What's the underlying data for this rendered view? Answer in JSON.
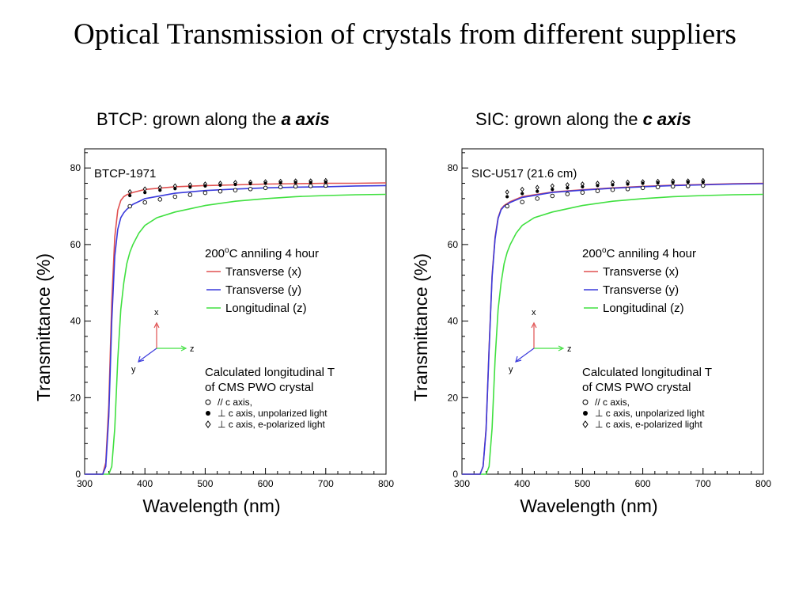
{
  "slide": {
    "title": "Optical Transmission of crystals from different suppliers"
  },
  "chart_data": [
    {
      "type": "line",
      "heading": {
        "prefix": "BTCP: grown along the ",
        "emphasis": "a axis"
      },
      "sample_label": "BTCP-1971",
      "xlabel": "Wavelength (nm)",
      "ylabel": "Transmittance (%)",
      "xlim": [
        300,
        800
      ],
      "ylim": [
        0,
        85
      ],
      "xticks": [
        "300",
        "400",
        "500",
        "600",
        "700",
        "800"
      ],
      "yticks": [
        "0",
        "20",
        "40",
        "60",
        "80"
      ],
      "legend": {
        "header_pre": "200",
        "header_sup": "o",
        "header_post": "C anniling 4 hour",
        "entries": [
          "Transverse (x)",
          "Transverse (y)",
          "Longitudinal (z)"
        ]
      },
      "axes_glyph": {
        "x": "x",
        "y": "y",
        "z": "z"
      },
      "calc_legend": {
        "title_line1": "Calculated longitudinal T",
        "title_line2": "of CMS PWO crystal",
        "entries": [
          "// c axis,",
          "⊥ c axis, unpolarized light",
          "⊥ c axis, e-polarized light"
        ]
      },
      "series": [
        {
          "name": "Transverse (x)",
          "color": "#e05050",
          "x": [
            300,
            330,
            335,
            340,
            345,
            350,
            355,
            360,
            365,
            370,
            380,
            400,
            450,
            500,
            550,
            600,
            650,
            700,
            750,
            800
          ],
          "y": [
            0,
            0,
            3,
            18,
            45,
            62,
            69,
            71.5,
            72.5,
            73,
            73.6,
            74.4,
            75.1,
            75.4,
            75.6,
            75.8,
            75.9,
            76,
            76,
            76.1
          ]
        },
        {
          "name": "Transverse (y)",
          "color": "#3a3adc",
          "x": [
            300,
            330,
            335,
            340,
            345,
            350,
            355,
            360,
            365,
            370,
            380,
            400,
            450,
            500,
            550,
            600,
            650,
            700,
            750,
            800
          ],
          "y": [
            0,
            0,
            2,
            15,
            40,
            57,
            64,
            67,
            68.3,
            69.2,
            70.5,
            72,
            73.4,
            74.1,
            74.5,
            74.8,
            75,
            75.1,
            75.3,
            75.4
          ]
        },
        {
          "name": "Longitudinal (z)",
          "color": "#40e040",
          "x": [
            300,
            340,
            345,
            350,
            355,
            360,
            365,
            370,
            375,
            380,
            390,
            400,
            420,
            450,
            500,
            550,
            600,
            650,
            700,
            750,
            800
          ],
          "y": [
            0,
            0,
            2,
            12,
            30,
            43,
            50,
            55,
            58,
            60,
            63,
            65,
            67,
            68.5,
            70.2,
            71.3,
            72,
            72.5,
            72.8,
            73,
            73.1
          ]
        }
      ],
      "markers": {
        "x": [
          375,
          400,
          425,
          450,
          475,
          500,
          525,
          550,
          575,
          600,
          625,
          650,
          675,
          700
        ],
        "c_axis": [
          70,
          71,
          71.8,
          72.5,
          73,
          73.5,
          73.9,
          74.2,
          74.5,
          74.8,
          75,
          75.2,
          75.3,
          75.4
        ],
        "perp_unpolarized": [
          72.8,
          73.6,
          74.2,
          74.6,
          75,
          75.3,
          75.5,
          75.7,
          75.9,
          76,
          76.1,
          76.2,
          76.2,
          76.3
        ],
        "perp_epolarized": [
          73.8,
          74.5,
          74.9,
          75.3,
          75.6,
          75.8,
          76,
          76.2,
          76.3,
          76.4,
          76.5,
          76.6,
          76.6,
          76.7
        ]
      }
    },
    {
      "type": "line",
      "heading": {
        "prefix": "SIC: grown along the ",
        "emphasis": "c axis"
      },
      "sample_label": "SIC-U517 (21.6 cm)",
      "xlabel": "Wavelength (nm)",
      "ylabel": "Transmittance (%)",
      "xlim": [
        300,
        800
      ],
      "ylim": [
        0,
        85
      ],
      "xticks": [
        "300",
        "400",
        "500",
        "600",
        "700",
        "800"
      ],
      "yticks": [
        "0",
        "20",
        "40",
        "60",
        "80"
      ],
      "legend": {
        "header_pre": "200",
        "header_sup": "o",
        "header_post": "C anniling 4 hour",
        "entries": [
          "Transverse (x)",
          "Transverse (y)",
          "Longitudinal (z)"
        ]
      },
      "axes_glyph": {
        "x": "x",
        "y": "y",
        "z": "z"
      },
      "calc_legend": {
        "title_line1": "Calculated longitudinal T",
        "title_line2": "of CMS PWO crystal",
        "entries": [
          "// c axis,",
          "⊥ c axis, unpolarized light",
          "⊥ c axis, e-polarized light"
        ]
      },
      "series": [
        {
          "name": "Transverse (x)",
          "color": "#e05050",
          "x": [
            300,
            330,
            335,
            340,
            345,
            350,
            355,
            360,
            365,
            370,
            380,
            400,
            450,
            500,
            550,
            600,
            650,
            700,
            750,
            800
          ],
          "y": [
            0,
            0,
            2,
            12,
            33,
            52,
            62,
            67,
            69.3,
            70.2,
            71.2,
            72.5,
            73.7,
            74.3,
            74.8,
            75.2,
            75.5,
            75.7,
            75.9,
            76
          ]
        },
        {
          "name": "Transverse (y)",
          "color": "#3a3adc",
          "x": [
            300,
            330,
            335,
            340,
            345,
            350,
            355,
            360,
            365,
            370,
            380,
            400,
            450,
            500,
            550,
            600,
            650,
            700,
            750,
            800
          ],
          "y": [
            0,
            0,
            2,
            11.5,
            32.5,
            51.5,
            61.5,
            66.8,
            69.1,
            70,
            71,
            72.3,
            73.6,
            74.2,
            74.7,
            75.1,
            75.4,
            75.6,
            75.8,
            75.9
          ]
        },
        {
          "name": "Longitudinal (z)",
          "color": "#40e040",
          "x": [
            300,
            340,
            345,
            350,
            355,
            360,
            365,
            370,
            375,
            380,
            390,
            400,
            420,
            450,
            500,
            550,
            600,
            650,
            700,
            750,
            800
          ],
          "y": [
            0,
            0,
            2,
            12,
            30,
            43,
            50,
            55,
            58,
            60,
            63,
            65,
            67,
            68.5,
            70.2,
            71.3,
            72,
            72.5,
            72.8,
            73,
            73.1
          ]
        }
      ],
      "markers": {
        "x": [
          375,
          400,
          425,
          450,
          475,
          500,
          525,
          550,
          575,
          600,
          625,
          650,
          675,
          700
        ],
        "c_axis": [
          70,
          71.1,
          72,
          72.7,
          73.2,
          73.6,
          74,
          74.3,
          74.5,
          74.8,
          75,
          75.2,
          75.3,
          75.4
        ],
        "perp_unpolarized": [
          72.5,
          73.3,
          73.9,
          74.4,
          74.8,
          75.1,
          75.4,
          75.6,
          75.8,
          76,
          76.1,
          76.2,
          76.3,
          76.3
        ],
        "perp_epolarized": [
          73.7,
          74.4,
          74.9,
          75.3,
          75.6,
          75.8,
          76,
          76.2,
          76.3,
          76.4,
          76.5,
          76.6,
          76.6,
          76.7
        ]
      }
    }
  ]
}
